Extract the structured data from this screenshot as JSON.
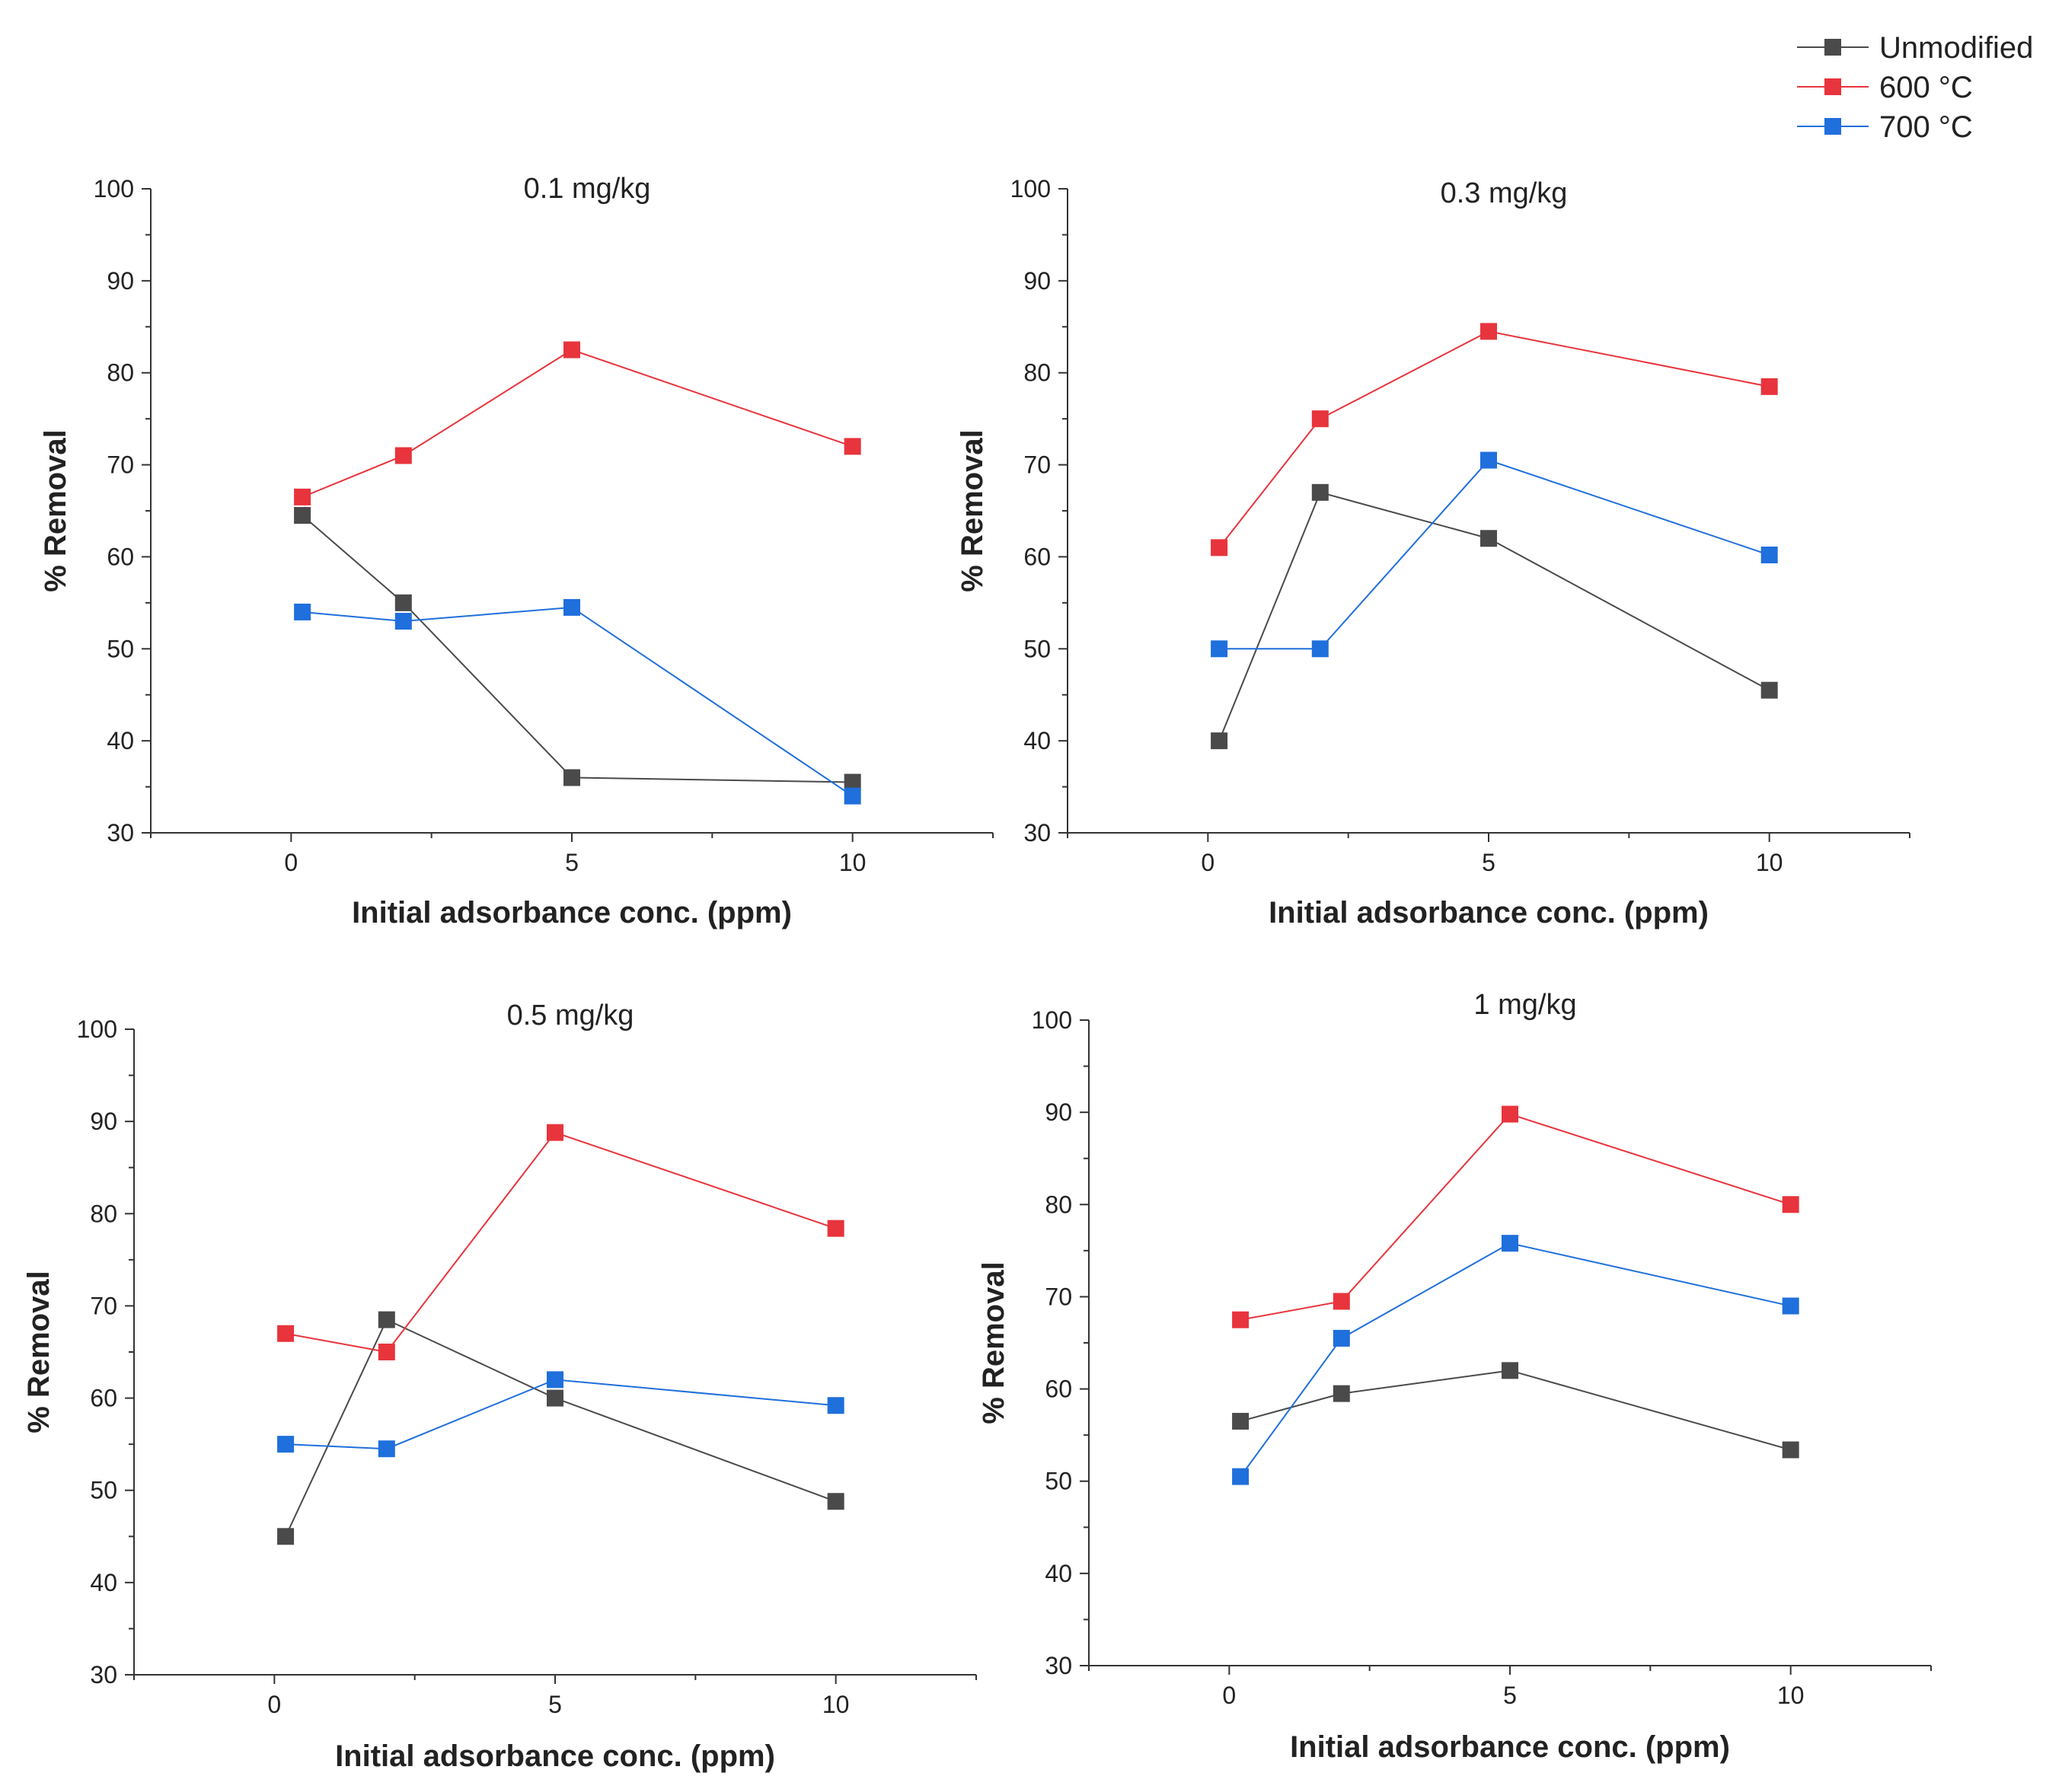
{
  "legend": {
    "entries": [
      {
        "name": "Unmodified",
        "color": "#4a4a4a"
      },
      {
        "name": "600 °C",
        "color": "#e8343c"
      },
      {
        "name": "700 °C",
        "color": "#1f6fdc"
      }
    ]
  },
  "chart_data": [
    {
      "type": "line",
      "title": "0.1 mg/kg",
      "xlabel": "Initial adsorbance conc. (ppm)",
      "ylabel": "% Removal",
      "xlim": [
        -2.5,
        12.5
      ],
      "ylim": [
        30,
        100
      ],
      "xticks": [
        0,
        5,
        10
      ],
      "yticks": [
        30,
        40,
        50,
        60,
        70,
        80,
        90,
        100
      ],
      "x": [
        0.2,
        2,
        5,
        10
      ],
      "series": [
        {
          "name": "Unmodified",
          "values": [
            64.5,
            55,
            36,
            35.5
          ]
        },
        {
          "name": "600 °C",
          "values": [
            66.5,
            71,
            82.5,
            72
          ]
        },
        {
          "name": "700 °C",
          "values": [
            54,
            53,
            54.5,
            34
          ]
        }
      ]
    },
    {
      "type": "line",
      "title": "0.3 mg/kg",
      "xlabel": "Initial adsorbance conc. (ppm)",
      "ylabel": "% Removal",
      "xlim": [
        -2.5,
        12.5
      ],
      "ylim": [
        30,
        100
      ],
      "xticks": [
        0,
        5,
        10
      ],
      "yticks": [
        30,
        40,
        50,
        60,
        70,
        80,
        90,
        100
      ],
      "x": [
        0.2,
        2,
        5,
        10
      ],
      "series": [
        {
          "name": "Unmodified",
          "values": [
            40,
            67,
            62,
            45.5
          ]
        },
        {
          "name": "600 °C",
          "values": [
            61,
            75,
            84.5,
            78.5
          ]
        },
        {
          "name": "700 °C",
          "values": [
            50,
            50,
            70.5,
            60.2
          ]
        }
      ]
    },
    {
      "type": "line",
      "title": "0.5 mg/kg",
      "xlabel": "Initial adsorbance conc. (ppm)",
      "ylabel": "% Removal",
      "xlim": [
        -2.5,
        12.5
      ],
      "ylim": [
        30,
        100
      ],
      "xticks": [
        0,
        5,
        10
      ],
      "yticks": [
        30,
        40,
        50,
        60,
        70,
        80,
        90,
        100
      ],
      "x": [
        0.2,
        2,
        5,
        10
      ],
      "series": [
        {
          "name": "Unmodified",
          "values": [
            45,
            68.5,
            60,
            48.8
          ]
        },
        {
          "name": "600 °C",
          "values": [
            67,
            65,
            88.8,
            78.4
          ]
        },
        {
          "name": "700 °C",
          "values": [
            55,
            54.5,
            62,
            59.2
          ]
        }
      ]
    },
    {
      "type": "line",
      "title": "1 mg/kg",
      "xlabel": "Initial adsorbance conc. (ppm)",
      "ylabel": "% Removal",
      "xlim": [
        -2.5,
        12.5
      ],
      "ylim": [
        30,
        100
      ],
      "xticks": [
        0,
        5,
        10
      ],
      "yticks": [
        30,
        40,
        50,
        60,
        70,
        80,
        90,
        100
      ],
      "x": [
        0.2,
        2,
        5,
        10
      ],
      "series": [
        {
          "name": "Unmodified",
          "values": [
            56.5,
            59.5,
            62,
            53.4
          ]
        },
        {
          "name": "600 °C",
          "values": [
            67.5,
            69.5,
            89.8,
            80
          ]
        },
        {
          "name": "700 °C",
          "values": [
            50.5,
            65.5,
            75.8,
            69
          ]
        }
      ]
    }
  ]
}
